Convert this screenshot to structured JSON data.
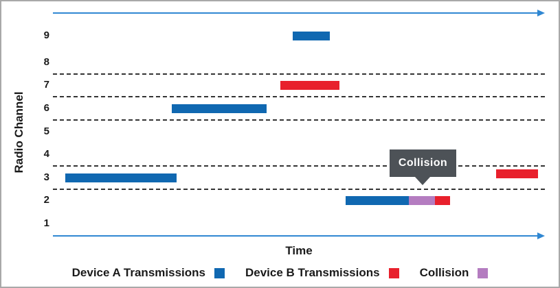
{
  "chart_data": {
    "type": "bar",
    "subtype": "frequency-hopping-transmission-timeline",
    "title": "",
    "xlabel": "Time",
    "ylabel": "Radio Channel",
    "x_axis": {
      "min": 0,
      "max": 100,
      "unit": "relative time (unlabeled arrow axis)",
      "ticks_visible": false
    },
    "y_axis": {
      "channel_labels": [
        9,
        8,
        7,
        6,
        5,
        4,
        3,
        2,
        1
      ]
    },
    "dashed_gridlines_at_channel_boundaries": [
      7.5,
      6.5,
      5.5,
      3.5,
      2.5
    ],
    "series": [
      {
        "name": "Device A Transmissions",
        "color_key": "device_a",
        "bars": [
          {
            "channel": 9,
            "start": 49.0,
            "end": 56.6
          },
          {
            "channel": 6,
            "start": 24.2,
            "end": 43.6
          },
          {
            "channel": 3,
            "start": 2.5,
            "end": 25.2
          },
          {
            "channel": 2,
            "start": 59.7,
            "end": 72.7
          }
        ]
      },
      {
        "name": "Device B Transmissions",
        "color_key": "device_b",
        "bars": [
          {
            "channel": 7,
            "start": 46.4,
            "end": 58.5
          },
          {
            "channel": 3.15,
            "start": 90.5,
            "end": 99.0
          },
          {
            "channel": 2,
            "start": 78.0,
            "end": 81.1
          }
        ]
      },
      {
        "name": "Collision",
        "color_key": "collision",
        "bars": [
          {
            "channel": 2,
            "start": 72.7,
            "end": 78.0
          }
        ]
      }
    ],
    "annotation": {
      "label": "Collision",
      "points_to_time": 75.5,
      "points_to_channel": 2
    },
    "legend_position": "bottom-center",
    "grid": "dashed horizontal lines only"
  },
  "legend": {
    "items": [
      {
        "label": "Device A Transmissions",
        "color_key": "device_a"
      },
      {
        "label": "Device B Transmissions",
        "color_key": "device_b"
      },
      {
        "label": "Collision",
        "color_key": "collision"
      }
    ]
  },
  "colors": {
    "device_a": "#1068b1",
    "device_b": "#e8202c",
    "collision": "#b47cc0",
    "axis_arrow": "#2f87d2",
    "gridline": "#333333",
    "callout_bg": "#4d5257",
    "text": "#1a1a1a",
    "frame_border": "#a8a8a8"
  }
}
